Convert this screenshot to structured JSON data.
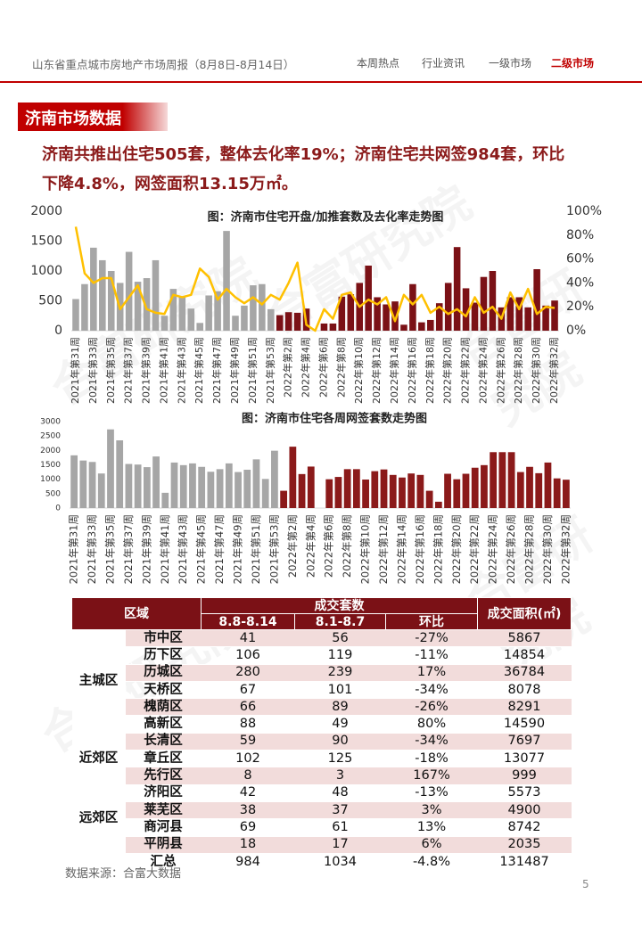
{
  "header": {
    "title": "山东省重点城市房地产市场周报（8月8日-8月14日）",
    "nav": [
      "本周热点",
      "行业资讯",
      "一级市场",
      "二级市场"
    ]
  },
  "section_title": "济南市场数据",
  "summary": "济南共推出住宅505套，整体去化率19%；济南住宅共网签984套，环比下降4.8%，网签面积13.15万㎡。",
  "watermark": "合富研究院",
  "chart_data": [
    {
      "type": "bar",
      "title": "图：济南市住宅开盘/加推套数及去化率走势图",
      "categories": [
        "2021年第31周",
        null,
        "2021年第33周",
        null,
        "2021年第35周",
        null,
        "2021年第37周",
        null,
        "2021年第39周",
        null,
        "2021年第41周",
        null,
        "2021年第43周",
        null,
        "2021年第45周",
        null,
        "2021年第47周",
        null,
        "2021年第49周",
        null,
        "2021年第51周",
        null,
        "2021年第53周",
        null,
        "2022年第2周",
        null,
        "2022年第4周",
        null,
        "2022年第6周",
        null,
        "2022年第8周",
        null,
        "2022年第10周",
        null,
        "2022年第12周",
        null,
        "2022年第14周",
        null,
        "2022年第16周",
        null,
        "2022年第18周",
        null,
        "2022年第20周",
        null,
        "2022年第22周",
        null,
        "2022年第24周",
        null,
        "2022年第26周",
        null,
        "2022年第28周",
        null,
        "2022年第30周",
        null,
        "2022年第32周"
      ],
      "series": [
        {
          "type": "bar",
          "values": [
            530,
            780,
            1390,
            1180,
            1000,
            800,
            1320,
            820,
            880,
            1180,
            250,
            700,
            560,
            370,
            130,
            590,
            660,
            1670,
            250,
            420,
            760,
            780,
            360,
            260,
            310,
            300,
            370,
            0,
            120,
            120,
            570,
            610,
            800,
            1090,
            560,
            440,
            490,
            100,
            780,
            140,
            180,
            460,
            800,
            1400,
            710,
            470,
            900,
            1000,
            390,
            560,
            560,
            390,
            1030,
            420,
            505
          ],
          "colors": [
            "#a6a6a6",
            "#a6a6a6",
            "#a6a6a6",
            "#a6a6a6",
            "#a6a6a6",
            "#a6a6a6",
            "#a6a6a6",
            "#a6a6a6",
            "#a6a6a6",
            "#a6a6a6",
            "#a6a6a6",
            "#a6a6a6",
            "#a6a6a6",
            "#a6a6a6",
            "#a6a6a6",
            "#a6a6a6",
            "#a6a6a6",
            "#a6a6a6",
            "#a6a6a6",
            "#a6a6a6",
            "#a6a6a6",
            "#a6a6a6",
            "#a6a6a6",
            "#7b1116",
            "#7b1116",
            "#7b1116",
            "#7b1116",
            "#7b1116",
            "#7b1116",
            "#7b1116",
            "#7b1116",
            "#7b1116",
            "#7b1116",
            "#7b1116",
            "#7b1116",
            "#7b1116",
            "#7b1116",
            "#7b1116",
            "#7b1116",
            "#7b1116",
            "#7b1116",
            "#7b1116",
            "#7b1116",
            "#7b1116",
            "#7b1116",
            "#7b1116",
            "#7b1116",
            "#7b1116",
            "#7b1116",
            "#7b1116",
            "#7b1116",
            "#7b1116",
            "#7b1116",
            "#7b1116",
            "#7b1116"
          ]
        },
        {
          "type": "line",
          "axis": "y2",
          "color": "#ffc000",
          "values": [
            87,
            48,
            40,
            44,
            44,
            18,
            28,
            38,
            18,
            15,
            14,
            30,
            28,
            30,
            52,
            45,
            26,
            35,
            28,
            23,
            28,
            22,
            30,
            26,
            40,
            57,
            5,
            0,
            18,
            10,
            30,
            32,
            20,
            26,
            22,
            28,
            8,
            30,
            22,
            30,
            15,
            20,
            14,
            18,
            12,
            28,
            15,
            20,
            10,
            32,
            18,
            35,
            14,
            20,
            19
          ]
        }
      ],
      "ylim": [
        0,
        2000
      ],
      "yticks": [
        0,
        500,
        1000,
        1500,
        2000
      ],
      "y2lim": [
        0,
        100
      ],
      "y2ticks": [
        {
          "value": 0,
          "label": "0%"
        },
        {
          "value": 20,
          "label": "20%"
        },
        {
          "value": 40,
          "label": "40%"
        },
        {
          "value": 60,
          "label": "60%"
        },
        {
          "value": 80,
          "label": "80%"
        },
        {
          "value": 100,
          "label": "100%"
        }
      ]
    },
    {
      "type": "bar",
      "title": "图：济南市住宅各周网签套数走势图",
      "categories": [
        "2021年第31周",
        null,
        "2021年第33周",
        null,
        "2021年第35周",
        null,
        "2021年第37周",
        null,
        "2021年第39周",
        null,
        "2021年第41周",
        null,
        "2021年第43周",
        null,
        "2021年第45周",
        null,
        "2021年第47周",
        null,
        "2021年第49周",
        null,
        "2021年第51周",
        null,
        "2021年第53周",
        null,
        "2022年第2周",
        null,
        "2022年第4周",
        null,
        "2022年第6周",
        null,
        "2022年第8周",
        null,
        "2022年第10周",
        null,
        "2022年第12周",
        null,
        "2022年第14周",
        null,
        "2022年第16周",
        null,
        "2022年第18周",
        null,
        "2022年第20周",
        null,
        "2022年第22周",
        null,
        "2022年第24周",
        null,
        "2022年第26周",
        null,
        "2022年第28周",
        null,
        "2022年第30周",
        null,
        "2022年第32周"
      ],
      "series": [
        {
          "type": "bar",
          "values": [
            1830,
            1650,
            1600,
            1200,
            2730,
            2350,
            1530,
            1510,
            1420,
            1790,
            530,
            1580,
            1490,
            1550,
            1430,
            1260,
            1350,
            1550,
            1250,
            1330,
            1690,
            1010,
            1990,
            600,
            2130,
            1180,
            1440,
            0,
            1000,
            1080,
            1350,
            1350,
            990,
            1280,
            1340,
            1150,
            1060,
            1200,
            1150,
            600,
            220,
            1190,
            1000,
            1190,
            1400,
            1490,
            1940,
            1940,
            1940,
            1250,
            1430,
            1210,
            1580,
            1030,
            984
          ],
          "colors": [
            "#a6a6a6",
            "#a6a6a6",
            "#a6a6a6",
            "#a6a6a6",
            "#a6a6a6",
            "#a6a6a6",
            "#a6a6a6",
            "#a6a6a6",
            "#a6a6a6",
            "#a6a6a6",
            "#a6a6a6",
            "#a6a6a6",
            "#a6a6a6",
            "#a6a6a6",
            "#a6a6a6",
            "#a6a6a6",
            "#a6a6a6",
            "#a6a6a6",
            "#a6a6a6",
            "#a6a6a6",
            "#a6a6a6",
            "#a6a6a6",
            "#a6a6a6",
            "#8b1a1a",
            "#8b1a1a",
            "#8b1a1a",
            "#8b1a1a",
            "#8b1a1a",
            "#8b1a1a",
            "#8b1a1a",
            "#8b1a1a",
            "#8b1a1a",
            "#8b1a1a",
            "#8b1a1a",
            "#8b1a1a",
            "#8b1a1a",
            "#8b1a1a",
            "#8b1a1a",
            "#8b1a1a",
            "#8b1a1a",
            "#8b1a1a",
            "#8b1a1a",
            "#8b1a1a",
            "#8b1a1a",
            "#8b1a1a",
            "#8b1a1a",
            "#8b1a1a",
            "#8b1a1a",
            "#8b1a1a",
            "#8b1a1a",
            "#8b1a1a",
            "#8b1a1a",
            "#8b1a1a",
            "#8b1a1a",
            "#8b1a1a"
          ]
        }
      ],
      "ylim": [
        0,
        3000
      ],
      "yticks": [
        0,
        500,
        1000,
        1500,
        2000,
        2500,
        3000
      ]
    }
  ],
  "table": {
    "header": [
      "区域",
      "成交套数",
      "成交面积(㎡)"
    ],
    "subheader": [
      "8.8-8.14",
      "8.1-8.7",
      "环比"
    ],
    "groups": [
      {
        "name": "主城区",
        "rows": [
          [
            "市中区",
            "41",
            "56",
            "-27%",
            "5867"
          ],
          [
            "历下区",
            "106",
            "119",
            "-11%",
            "14854"
          ],
          [
            "历城区",
            "280",
            "239",
            "17%",
            "36784"
          ],
          [
            "天桥区",
            "67",
            "101",
            "-34%",
            "8078"
          ],
          [
            "槐荫区",
            "66",
            "89",
            "-26%",
            "8291"
          ],
          [
            "高新区",
            "88",
            "49",
            "80%",
            "14590"
          ]
        ]
      },
      {
        "name": "近郊区",
        "rows": [
          [
            "长清区",
            "59",
            "90",
            "-34%",
            "7697"
          ],
          [
            "章丘区",
            "102",
            "125",
            "-18%",
            "13077"
          ],
          [
            "先行区",
            "8",
            "3",
            "167%",
            "999"
          ]
        ]
      },
      {
        "name": "远郊区",
        "rows": [
          [
            "济阳区",
            "42",
            "48",
            "-13%",
            "5573"
          ],
          [
            "莱芜区",
            "38",
            "37",
            "3%",
            "4900"
          ],
          [
            "商河县",
            "69",
            "61",
            "13%",
            "8742"
          ],
          [
            "平阴县",
            "18",
            "17",
            "6%",
            "2035"
          ]
        ]
      }
    ],
    "total": [
      "汇总",
      "984",
      "1034",
      "-4.8%",
      "131487"
    ]
  },
  "source": "数据来源：合富大数据",
  "page_number": "5"
}
